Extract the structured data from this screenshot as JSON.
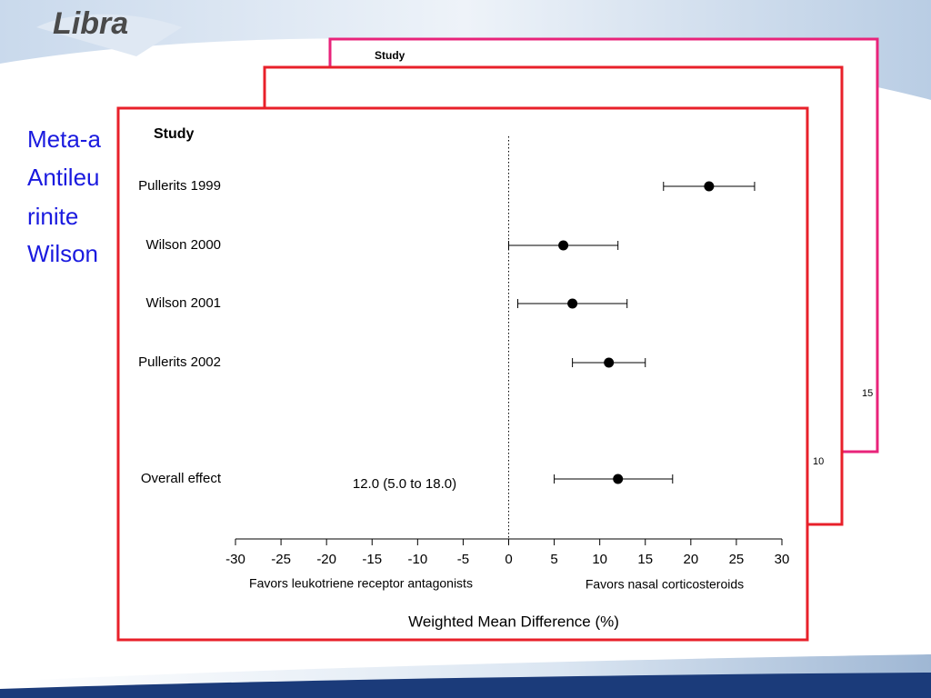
{
  "slide": {
    "logo": "Libra",
    "title_lines": [
      "Meta-a",
      "Antileu",
      "rinite",
      "Wilson"
    ]
  },
  "background_panels": [
    {
      "label": "Study",
      "tick": "15"
    },
    {
      "tick": "10"
    }
  ],
  "chart_data": {
    "type": "forest",
    "column_header": "Study",
    "categories": [
      "Pullerits 1999",
      "Wilson 2000",
      "Wilson 2001",
      "Pullerits 2002"
    ],
    "values": [
      22,
      6,
      7,
      11
    ],
    "lower": [
      17,
      0,
      1,
      7
    ],
    "upper": [
      27,
      12,
      13,
      15
    ],
    "summary": {
      "name": "Overall effect",
      "value": 12,
      "lower": 5,
      "upper": 18,
      "value_label": "12.0 (5.0 to 18.0)"
    },
    "xlim": [
      -30,
      30
    ],
    "xticks": [
      -30,
      -25,
      -20,
      -15,
      -10,
      -5,
      0,
      5,
      10,
      15,
      20,
      25,
      30
    ],
    "reference_line": 0,
    "left_note": "Favors leukotriene receptor antagonists",
    "right_note": "Favors nasal corticosteroids",
    "xlabel": "Weighted Mean Difference (%)",
    "color": "#000000"
  }
}
